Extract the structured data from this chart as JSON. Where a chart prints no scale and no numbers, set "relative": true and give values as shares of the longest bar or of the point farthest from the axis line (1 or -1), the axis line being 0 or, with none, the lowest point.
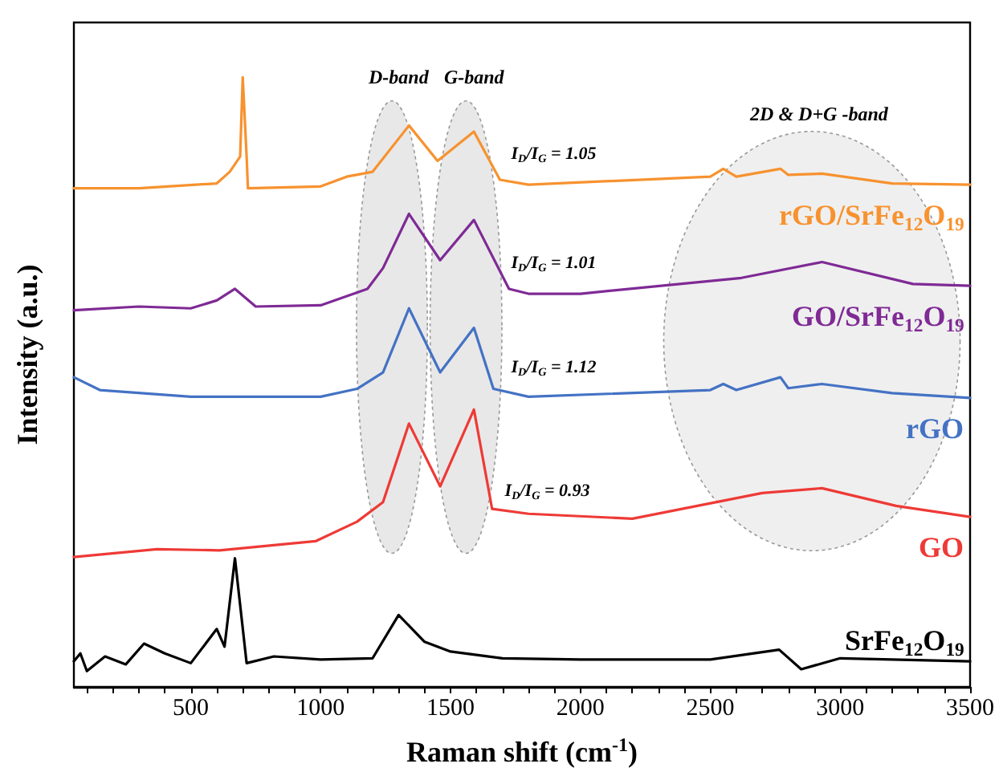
{
  "chart_data": {
    "type": "line",
    "relative": true,
    "xlabel": "Raman shift (cm$^{-1}$)",
    "ylabel": "Intensity (a.u.)",
    "xlim": [
      50,
      3500
    ],
    "xticks": [
      {
        "value": 100,
        "label": null
      },
      {
        "value": 200,
        "label": null
      },
      {
        "value": 300,
        "label": null
      },
      {
        "value": 400,
        "label": null
      },
      500,
      {
        "value": 600,
        "label": null
      },
      {
        "value": 700,
        "label": null
      },
      {
        "value": 800,
        "label": null
      },
      {
        "value": 900,
        "label": null
      },
      1000,
      {
        "value": 1100,
        "label": null
      },
      {
        "value": 1200,
        "label": null
      },
      {
        "value": 1300,
        "label": null
      },
      {
        "value": 1400,
        "label": null
      },
      1500,
      {
        "value": 1600,
        "label": null
      },
      {
        "value": 1700,
        "label": null
      },
      {
        "value": 1800,
        "label": null
      },
      {
        "value": 1900,
        "label": null
      },
      2000,
      {
        "value": 2100,
        "label": null
      },
      {
        "value": 2200,
        "label": null
      },
      {
        "value": 2300,
        "label": null
      },
      {
        "value": 2400,
        "label": null
      },
      2500,
      {
        "value": 2600,
        "label": null
      },
      {
        "value": 2700,
        "label": null
      },
      {
        "value": 2800,
        "label": null
      },
      {
        "value": 2900,
        "label": null
      },
      3000,
      {
        "value": 3100,
        "label": null
      },
      {
        "value": 3200,
        "label": null
      },
      {
        "value": 3300,
        "label": null
      },
      {
        "value": 3400,
        "label": null
      },
      3500
    ],
    "legend": false,
    "grid": false,
    "marker": "none",
    "line_style": "solid",
    "series": [
      {
        "name": "rGO/SrFe$_{12}$O$_{19}$",
        "color": "#f7922f",
        "x": [
          50,
          300,
          600,
          650,
          690,
          700,
          715,
          720,
          1000,
          1100,
          1200,
          1340,
          1450,
          1590,
          1690,
          1800,
          2500,
          2550,
          2600,
          2770,
          2800,
          2930,
          3200,
          3500
        ],
        "values": [
          0.818,
          0.818,
          0.826,
          0.845,
          0.87,
          1.0,
          0.87,
          0.818,
          0.821,
          0.837,
          0.845,
          0.921,
          0.863,
          0.911,
          0.832,
          0.824,
          0.837,
          0.85,
          0.837,
          0.85,
          0.84,
          0.842,
          0.826,
          0.824
        ]
      },
      {
        "name": "GO/SrFe$_{12}$O$_{19}$",
        "color": "#7f2a95",
        "x": [
          50,
          300,
          500,
          600,
          670,
          750,
          1000,
          1180,
          1240,
          1340,
          1460,
          1590,
          1725,
          1800,
          2000,
          2620,
          2930,
          3280,
          3500
        ],
        "values": [
          0.618,
          0.624,
          0.621,
          0.634,
          0.653,
          0.624,
          0.626,
          0.653,
          0.687,
          0.776,
          0.7,
          0.766,
          0.653,
          0.645,
          0.645,
          0.671,
          0.697,
          0.661,
          0.658
        ]
      },
      {
        "name": "rGO",
        "color": "#4472c4",
        "x": [
          50,
          150,
          500,
          1000,
          1140,
          1240,
          1340,
          1460,
          1590,
          1665,
          1800,
          2500,
          2550,
          2600,
          2770,
          2800,
          2930,
          3200,
          3500
        ],
        "values": [
          0.508,
          0.487,
          0.476,
          0.476,
          0.489,
          0.516,
          0.621,
          0.516,
          0.589,
          0.489,
          0.476,
          0.487,
          0.497,
          0.487,
          0.508,
          0.49,
          0.497,
          0.482,
          0.474
        ]
      },
      {
        "name": "GO",
        "color": "#ee3a36",
        "x": [
          50,
          370,
          610,
          980,
          1140,
          1240,
          1340,
          1460,
          1590,
          1660,
          1800,
          2200,
          2700,
          2930,
          3215,
          3500
        ],
        "values": [
          0.213,
          0.226,
          0.224,
          0.239,
          0.271,
          0.303,
          0.432,
          0.329,
          0.455,
          0.292,
          0.284,
          0.276,
          0.318,
          0.326,
          0.297,
          0.279
        ]
      },
      {
        "name": "SrFe$_{12}$O$_{19}$",
        "color": "#000000",
        "x": [
          50,
          75,
          100,
          170,
          250,
          320,
          400,
          500,
          600,
          630,
          670,
          715,
          820,
          1000,
          1200,
          1300,
          1400,
          1500,
          1700,
          2000,
          2500,
          2765,
          2850,
          3000,
          3500
        ],
        "values": [
          0.042,
          0.055,
          0.026,
          0.05,
          0.037,
          0.071,
          0.055,
          0.039,
          0.095,
          0.066,
          0.211,
          0.039,
          0.05,
          0.045,
          0.047,
          0.118,
          0.074,
          0.058,
          0.047,
          0.045,
          0.045,
          0.061,
          0.029,
          0.047,
          0.042
        ]
      }
    ],
    "annotations": [
      "D-band",
      "G-band",
      "2D & D+G -band",
      "I$_{D}$/I$_{G}$ = 1.05",
      "I$_{D}$/I$_{G}$ = 1.01",
      "I$_{D}$/I$_{G}$ = 1.12",
      "I$_{D}$/I$_{G}$ = 0.93"
    ]
  }
}
